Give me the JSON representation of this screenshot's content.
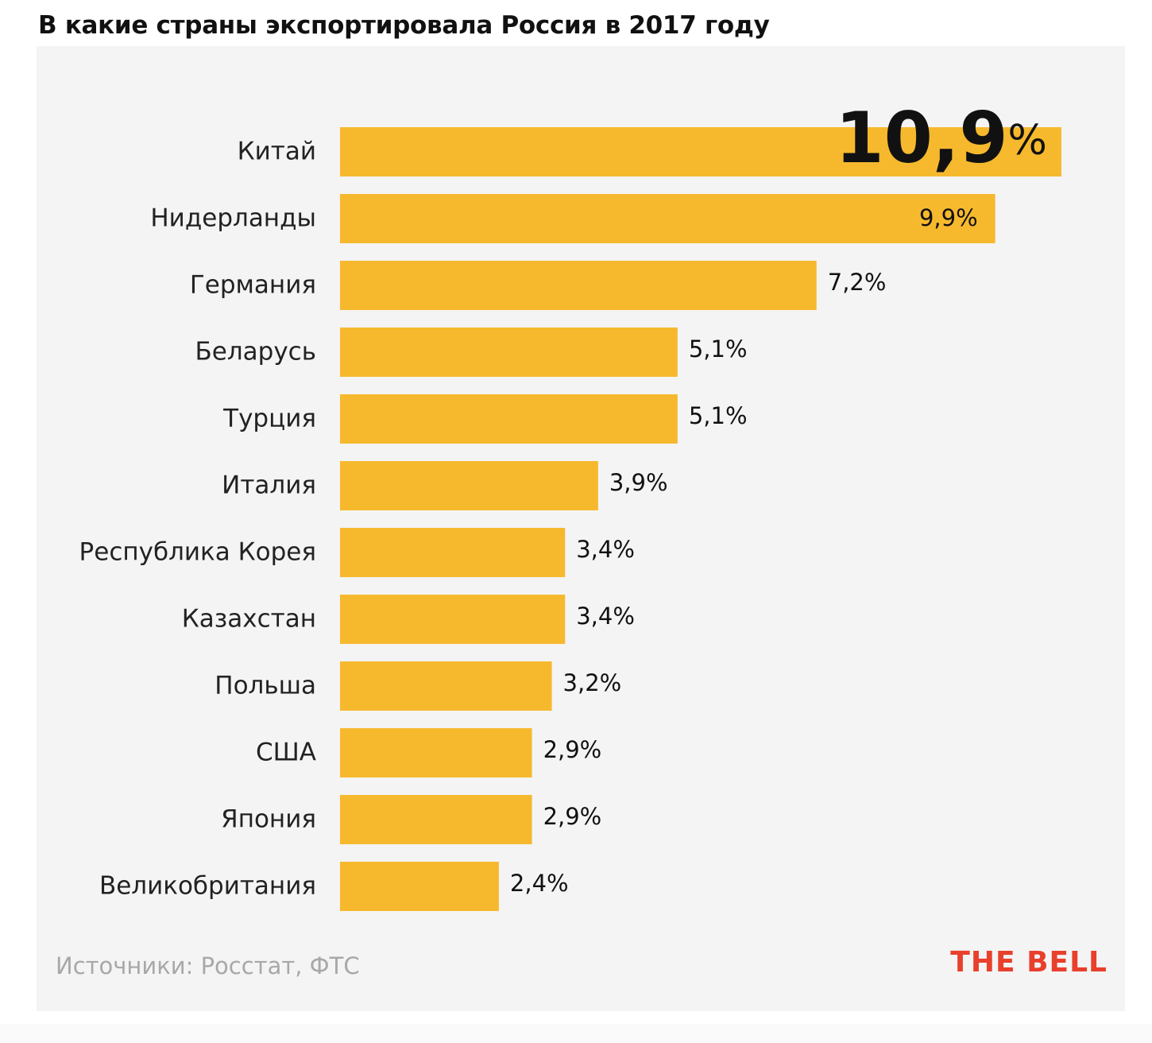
{
  "title": "В какие страны экспортировала Россия в 2017 году",
  "source": "Источники: Росстат, ФТС",
  "brand": "THE BELL",
  "colors": {
    "bar": "#f6b92e",
    "text": "#222222",
    "source": "#a8a8a8",
    "brand": "#e8402c",
    "card": "#f4f4f4"
  },
  "chart_data": {
    "type": "bar",
    "orientation": "horizontal",
    "categories": [
      "Китай",
      "Нидерланды",
      "Германия",
      "Беларусь",
      "Турция",
      "Италия",
      "Республика Корея",
      "Казахстан",
      "Польша",
      "США",
      "Япония",
      "Великобритания"
    ],
    "values": [
      10.9,
      9.9,
      7.2,
      5.1,
      5.1,
      3.9,
      3.4,
      3.4,
      3.2,
      2.9,
      2.9,
      2.4
    ],
    "labels": [
      "10,9%",
      "9,9%",
      "7,2%",
      "5,1%",
      "5,1%",
      "3,9%",
      "3,4%",
      "3,4%",
      "3,2%",
      "2,9%",
      "2,9%",
      "2,4%"
    ],
    "unit": "%",
    "grid": false
  }
}
